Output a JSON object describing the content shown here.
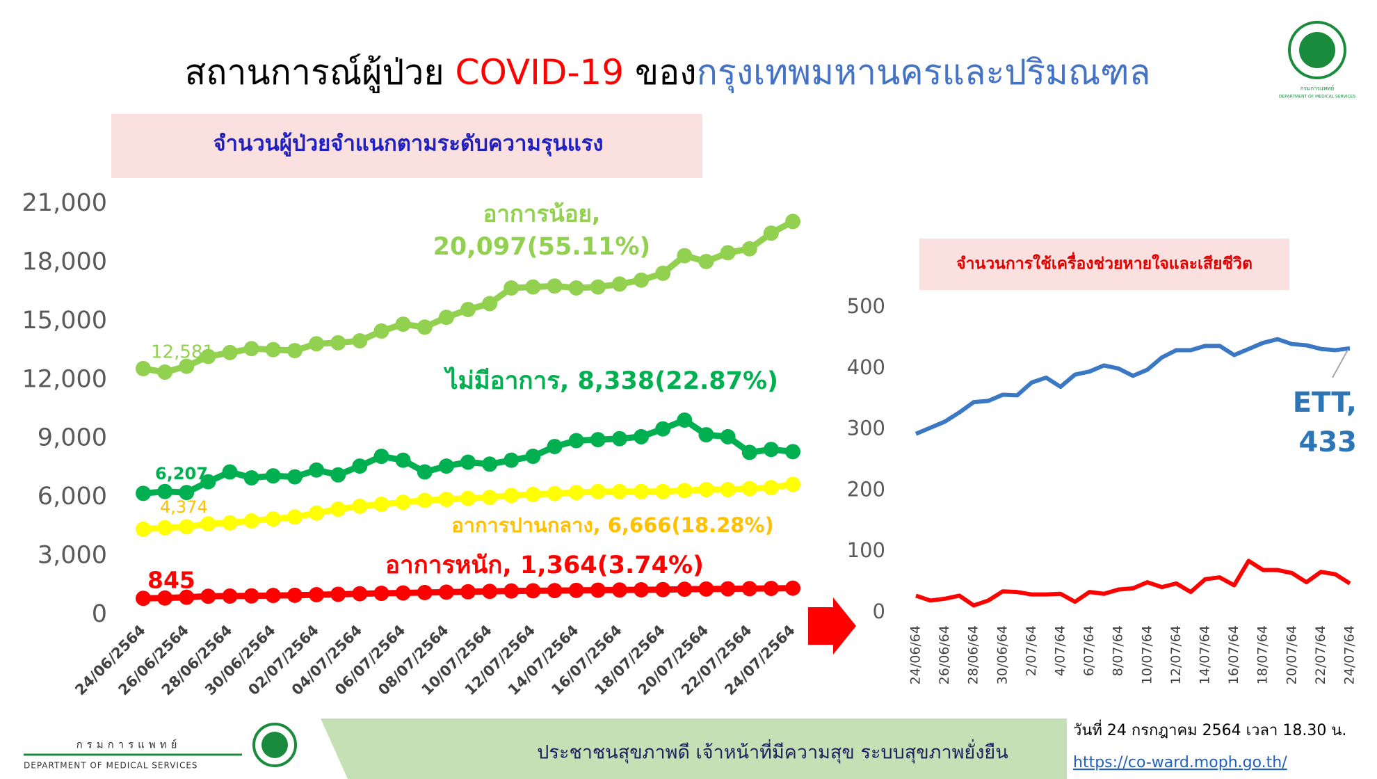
{
  "header": {
    "title_parts": [
      {
        "text": "สถานการณ์ผู้ป่วย ",
        "color": "#000000"
      },
      {
        "text": "COVID-19",
        "color": "#ff0000"
      },
      {
        "text": " ของ",
        "color": "#000000"
      },
      {
        "text": "กรุงเทพมหานครและปริมณฑล",
        "color": "#4472c4"
      }
    ],
    "org_th": "กรมการแพทย์",
    "org_en": "DEPARTMENT OF MEDICAL SERVICES"
  },
  "chart_data": [
    {
      "type": "line",
      "title": "จำนวนผู้ป่วยจำแนกตามระดับความรุนแรง",
      "markers": true,
      "categories": [
        "24/06/2564",
        null,
        "26/06/2564",
        null,
        "28/06/2564",
        null,
        "30/06/2564",
        null,
        "02/07/2564",
        null,
        "04/07/2564",
        null,
        "06/07/2564",
        null,
        "08/07/2564",
        null,
        "10/07/2564",
        null,
        "12/07/2564",
        null,
        "14/07/2564",
        null,
        "16/07/2564",
        null,
        "18/07/2564",
        null,
        "20/07/2564",
        null,
        "22/07/2564",
        null,
        "24/07/2564"
      ],
      "ylim": [
        0,
        21000
      ],
      "yticks": [
        0,
        {
          "value": 3000,
          "label": "3,000"
        },
        {
          "value": 6000,
          "label": "6,000"
        },
        {
          "value": 9000,
          "label": "9,000"
        },
        {
          "value": 12000,
          "label": "12,000"
        },
        {
          "value": 15000,
          "label": "15,000"
        },
        {
          "value": 18000,
          "label": "18,000"
        },
        {
          "value": 21000,
          "label": "21,000"
        }
      ],
      "series": [
        {
          "color": "#92d050",
          "label_color": "#92d050",
          "values": [
            12581,
            12400,
            12700,
            13200,
            13400,
            13600,
            13550,
            13500,
            13850,
            13900,
            14000,
            14500,
            14850,
            14700,
            15200,
            15600,
            15900,
            16700,
            16750,
            16800,
            16700,
            16750,
            16900,
            17100,
            17450,
            18350,
            18050,
            18500,
            18700,
            19500,
            20097
          ],
          "value_labels": [
            "12,581",
            null,
            null,
            null,
            null,
            null,
            null,
            null,
            null,
            null,
            null,
            null,
            null,
            null,
            null,
            null,
            null,
            null,
            null,
            null,
            null,
            null,
            null,
            null,
            null,
            null,
            null,
            null,
            null,
            null,
            null
          ],
          "annotation": [
            "อาการน้อย,",
            "20,097(55.11%)"
          ]
        },
        {
          "color": "#00b050",
          "label_color": "#00b050",
          "values": [
            6207,
            6300,
            6250,
            6800,
            7300,
            7000,
            7100,
            7050,
            7400,
            7150,
            7600,
            8100,
            7900,
            7300,
            7600,
            7800,
            7700,
            7900,
            8100,
            8600,
            8900,
            8950,
            9000,
            9100,
            9500,
            9950,
            9200,
            9100,
            8300,
            8450,
            8338
          ],
          "value_labels": [
            "6,207",
            null,
            null,
            null,
            null,
            null,
            null,
            null,
            null,
            null,
            null,
            null,
            null,
            null,
            null,
            null,
            null,
            null,
            null,
            null,
            null,
            null,
            null,
            null,
            null,
            null,
            null,
            null,
            null,
            null,
            null
          ],
          "annotation": [
            "ไม่มีอาการ, 8,338(22.87%)"
          ]
        },
        {
          "color": "#ffff00",
          "label_color": "#ffc000",
          "values": [
            4374,
            4450,
            4500,
            4650,
            4700,
            4800,
            4900,
            5000,
            5200,
            5400,
            5550,
            5650,
            5750,
            5850,
            5900,
            5950,
            6000,
            6100,
            6150,
            6200,
            6250,
            6300,
            6300,
            6300,
            6300,
            6350,
            6400,
            6400,
            6450,
            6500,
            6666
          ],
          "value_labels": [
            "4,374",
            null,
            null,
            null,
            null,
            null,
            null,
            null,
            null,
            null,
            null,
            null,
            null,
            null,
            null,
            null,
            null,
            null,
            null,
            null,
            null,
            null,
            null,
            null,
            null,
            null,
            null,
            null,
            null,
            null,
            null
          ],
          "annotation": [
            "อาการปานกลาง, 6,666(18.28%)"
          ]
        },
        {
          "color": "#ff0000",
          "label_color": "#ff0000",
          "values": [
            845,
            860,
            900,
            950,
            960,
            970,
            990,
            1000,
            1030,
            1050,
            1080,
            1100,
            1120,
            1140,
            1160,
            1180,
            1200,
            1220,
            1230,
            1240,
            1250,
            1260,
            1270,
            1280,
            1290,
            1310,
            1320,
            1330,
            1340,
            1350,
            1364
          ],
          "value_labels": [
            "845",
            null,
            null,
            null,
            null,
            null,
            null,
            null,
            null,
            null,
            null,
            null,
            null,
            null,
            null,
            null,
            null,
            null,
            null,
            null,
            null,
            null,
            null,
            null,
            null,
            null,
            null,
            null,
            null,
            null,
            null
          ],
          "annotation": [
            "อาการหนัก, 1,364(3.74%)"
          ]
        }
      ]
    },
    {
      "type": "line",
      "title": "จำนวนการใช้เครื่องช่วยหายใจและเสียชีวิต",
      "markers": false,
      "categories": [
        "24/06/64",
        null,
        "26/06/64",
        null,
        "28/06/64",
        null,
        "30/06/64",
        null,
        "2/07/64",
        null,
        "4/07/64",
        null,
        "6/07/64",
        null,
        "8/07/64",
        null,
        "10/07/64",
        null,
        "12/07/64",
        null,
        "14/07/64",
        null,
        "16/07/64",
        null,
        "18/07/64",
        null,
        "20/07/64",
        null,
        "22/07/64",
        null,
        "24/07/64"
      ],
      "ylim": [
        0,
        500
      ],
      "yticks": [
        0,
        100,
        200,
        300,
        400,
        500
      ],
      "series": [
        {
          "color": "#3a78c4",
          "label_color": "#2e75b6",
          "values": [
            293,
            303,
            313,
            328,
            345,
            347,
            357,
            356,
            377,
            385,
            370,
            390,
            395,
            405,
            400,
            388,
            398,
            418,
            430,
            430,
            437,
            437,
            422,
            432,
            442,
            448,
            440,
            438,
            432,
            430,
            433
          ],
          "annotation": [
            "ETT,",
            "433"
          ]
        },
        {
          "color": "#ff0000",
          "values": [
            28,
            20,
            23,
            28,
            12,
            20,
            35,
            34,
            30,
            30,
            31,
            18,
            34,
            31,
            38,
            40,
            50,
            42,
            48,
            34,
            55,
            58,
            45,
            85,
            70,
            70,
            65,
            50,
            67,
            63,
            48
          ]
        }
      ]
    }
  ],
  "footer": {
    "slogan": "ประชาชนสุขภาพดี   เจ้าหน้าที่มีความสุข   ระบบสุขภาพยั่งยืน",
    "date": "วันที่ 24 กรกฎาคม 2564 เวลา 18.30 น.",
    "url": "https://co-ward.moph.go.th/"
  }
}
